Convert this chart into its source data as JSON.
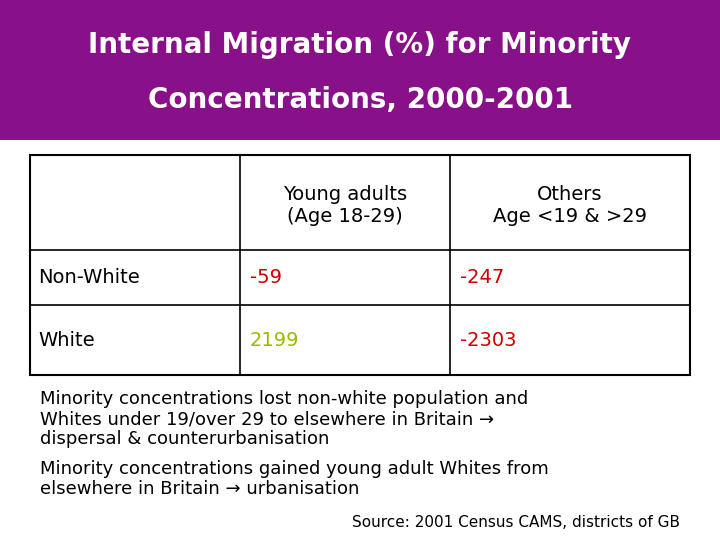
{
  "title_line1": "Internal Migration (%) for Minority",
  "title_line2": "Concentrations, 2000-2001",
  "title_bg_color": "#881088",
  "title_text_color": "#ffffff",
  "bg_color": "#ffffff",
  "table_bg": "#ffffff",
  "col_headers_line1": [
    "Young adults",
    "Others"
  ],
  "col_headers_line2": [
    "(Age 18-29)",
    "Age <19 & >29"
  ],
  "row_labels": [
    "Non-White",
    "White"
  ],
  "values": [
    [
      "-59",
      "-247"
    ],
    [
      "2199",
      "-2303"
    ]
  ],
  "value_colors": [
    [
      "#cc0000",
      "#cc0000"
    ],
    [
      "#99bb00",
      "#cc0000"
    ]
  ],
  "note1_line1": "Minority concentrations lost non-white population and",
  "note1_line2": "Whites under 19/over 29 to elsewhere in Britain →",
  "note1_line3": "dispersal & counterurbanisation",
  "note2_line1": "Minority concentrations gained young adult Whites from",
  "note2_line2": "elsewhere in Britain → urbanisation",
  "source": "Source: 2001 Census CAMS, districts of GB",
  "font_size_title": 20,
  "font_size_table_header": 14,
  "font_size_table_data": 14,
  "font_size_note": 13,
  "font_size_source": 11
}
